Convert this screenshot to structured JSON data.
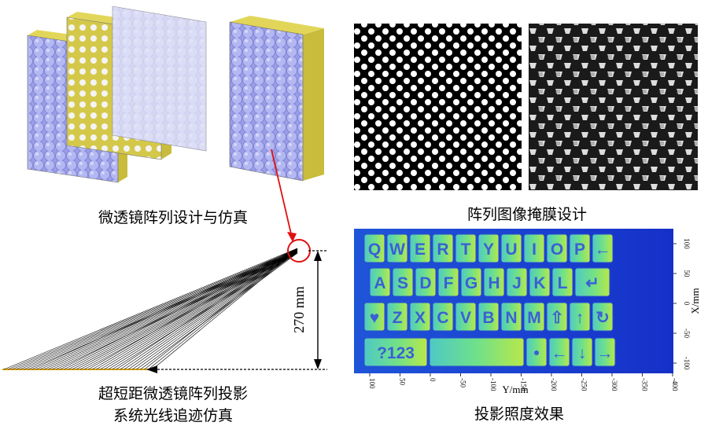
{
  "captions": {
    "lens_design": "微透镜阵列设计与仿真",
    "mask_design": "阵列图像掩膜设计",
    "ray_trace_line1": "超短距微透镜阵列投影",
    "ray_trace_line2": "系统光线追迹仿真",
    "projection": "投影照度效果"
  },
  "dimension_label": "270 mm",
  "projection_plot": {
    "x_label": "Y/mm",
    "y_label": "X/mm",
    "x_ticks": [
      "100",
      "50",
      "0",
      "-50",
      "-100",
      "-150",
      "-200",
      "-250",
      "-300",
      "-350",
      "-400"
    ],
    "y_ticks": [
      "100",
      "50",
      "0",
      "-50",
      "-100"
    ]
  },
  "keyboard": {
    "row1": [
      "Q",
      "W",
      "E",
      "R",
      "T",
      "Y",
      "U",
      "I",
      "O",
      "P",
      "←"
    ],
    "row2": [
      "A",
      "S",
      "D",
      "F",
      "G",
      "H",
      "J",
      "K",
      "L",
      "↵"
    ],
    "row3": [
      "♥",
      "Z",
      "X",
      "C",
      "V",
      "B",
      "N",
      "M",
      "⇧",
      "↑",
      "↻"
    ],
    "row4": [
      "?123",
      "",
      "•",
      "←",
      "↓",
      "→"
    ]
  },
  "colors": {
    "lens_face": "#9a9ee8",
    "frame": "#d4c84a",
    "projection_bg": "#1530c8",
    "key_fill": "#5ed8a0",
    "annotation_red": "#e01010"
  }
}
